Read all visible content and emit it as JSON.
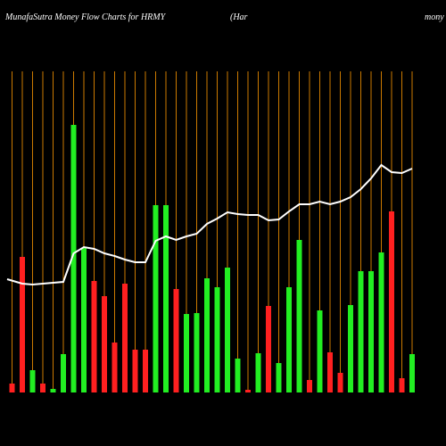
{
  "chart_data": {
    "type": "bar",
    "title": "MunafaSutra  Money Flow  Charts for HRMY",
    "title_parts": [
      "(Har",
      "mony"
    ],
    "categories": [
      null,
      null,
      null,
      null,
      null,
      null,
      null,
      null,
      null,
      null,
      null,
      null,
      null,
      null,
      null,
      null,
      null,
      null,
      null,
      null,
      null,
      null,
      null,
      null,
      null,
      null,
      null,
      null,
      null,
      null,
      null,
      null,
      null,
      null,
      null,
      null,
      null,
      null,
      null,
      null
    ],
    "values": [
      10,
      152,
      25,
      10,
      4,
      43,
      300,
      162,
      125,
      108,
      56,
      122,
      48,
      48,
      210,
      210,
      116,
      88,
      89,
      128,
      118,
      140,
      38,
      3,
      44,
      97,
      33,
      118,
      171,
      14,
      92,
      45,
      22,
      98,
      136,
      136,
      157,
      203,
      16,
      43
    ],
    "colors": [
      "#ff2020",
      "#ff2020",
      "#22ee22",
      "#ff2020",
      "#22ee22",
      "#22ee22",
      "#22ee22",
      "#22ee22",
      "#ff2020",
      "#ff2020",
      "#ff2020",
      "#ff2020",
      "#ff2020",
      "#ff2020",
      "#22ee22",
      "#22ee22",
      "#ff2020",
      "#22ee22",
      "#22ee22",
      "#22ee22",
      "#22ee22",
      "#22ee22",
      "#22ee22",
      "#ff2020",
      "#22ee22",
      "#ff2020",
      "#22ee22",
      "#22ee22",
      "#22ee22",
      "#ff2020",
      "#22ee22",
      "#ff2020",
      "#ff2020",
      "#22ee22",
      "#22ee22",
      "#22ee22",
      "#22ee22",
      "#ff2020",
      "#ff2020",
      "#22ee22"
    ],
    "line": {
      "color": "#ffffff",
      "values": [
        127,
        122,
        121,
        122,
        123,
        124,
        156,
        163,
        161,
        156,
        153,
        149,
        146,
        146,
        170,
        175,
        171,
        175,
        178,
        189,
        195,
        202,
        200,
        199,
        199,
        193,
        194,
        203,
        211,
        211,
        214,
        211,
        214,
        219,
        228,
        240,
        255,
        247,
        246,
        251
      ]
    },
    "ylim": [
      0,
      440
    ],
    "grid": true,
    "grid_color": "#cc7a00"
  }
}
